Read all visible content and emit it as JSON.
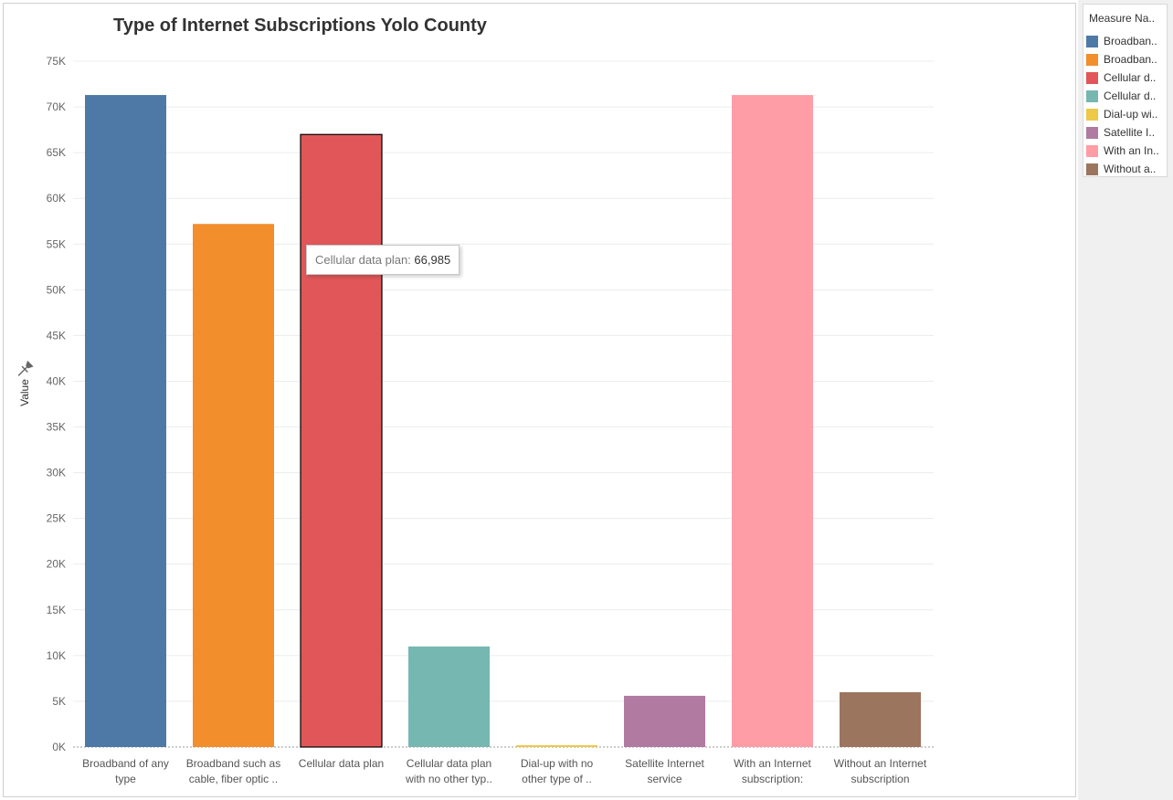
{
  "chart_data": {
    "type": "bar",
    "title": "Type of Internet Subscriptions Yolo County",
    "ylabel": "Value",
    "xlabel": "",
    "ylim": [
      0,
      75000
    ],
    "yticks": [
      0,
      5000,
      10000,
      15000,
      20000,
      25000,
      30000,
      35000,
      40000,
      45000,
      50000,
      55000,
      60000,
      65000,
      70000,
      75000
    ],
    "ytick_labels": [
      "0K",
      "5K",
      "10K",
      "15K",
      "20K",
      "25K",
      "30K",
      "35K",
      "40K",
      "45K",
      "50K",
      "55K",
      "60K",
      "65K",
      "70K",
      "75K"
    ],
    "grid": true,
    "categories": [
      [
        "Broadband of any",
        "type"
      ],
      [
        "Broadband such as",
        "cable, fiber optic .."
      ],
      [
        "Cellular data plan"
      ],
      [
        "Cellular data plan",
        "with no other typ.."
      ],
      [
        "Dial-up with no",
        "other type of .."
      ],
      [
        "Satellite Internet",
        "service"
      ],
      [
        "With an Internet",
        "subscription:"
      ],
      [
        "Without an Internet",
        "subscription"
      ]
    ],
    "values": [
      71300,
      57200,
      66985,
      11000,
      100,
      5600,
      71300,
      6000
    ],
    "colors": [
      "#4e79a7",
      "#f28e2b",
      "#e15759",
      "#76b7b2",
      "#edc948",
      "#b07aa1",
      "#ff9da7",
      "#9c755f"
    ],
    "highlighted_index": 2,
    "legend": {
      "title": "Measure Na..",
      "position": "right",
      "items": [
        "Broadban..",
        "Broadban..",
        "Cellular d..",
        "Cellular d..",
        "Dial-up wi..",
        "Satellite I..",
        "With an In..",
        "Without a.."
      ]
    },
    "tooltip": {
      "label": "Cellular data plan:",
      "value": "66,985"
    }
  }
}
